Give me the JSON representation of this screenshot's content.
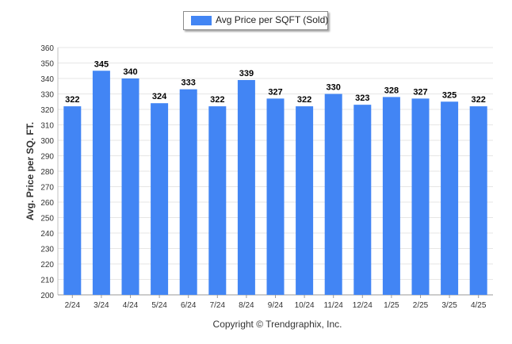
{
  "chart_data": {
    "type": "bar",
    "categories": [
      "2/24",
      "3/24",
      "4/24",
      "5/24",
      "6/24",
      "7/24",
      "8/24",
      "9/24",
      "10/24",
      "11/24",
      "12/24",
      "1/25",
      "2/25",
      "3/25",
      "4/25"
    ],
    "series": [
      {
        "name": "Avg Price per SQFT (Sold)",
        "values": [
          322,
          345,
          340,
          324,
          333,
          322,
          339,
          327,
          322,
          330,
          323,
          328,
          327,
          325,
          322
        ]
      }
    ],
    "ylabel": "Avg. Price per SQ. FT.",
    "ylim": [
      200,
      360
    ],
    "yticks": [
      200,
      210,
      220,
      230,
      240,
      250,
      260,
      270,
      280,
      290,
      300,
      310,
      320,
      330,
      340,
      350,
      360
    ],
    "grid": true,
    "legend": "top-center",
    "data_labels": true,
    "bar_color": "#4285f4"
  },
  "footer": "Copyright © Trendgraphix, Inc."
}
